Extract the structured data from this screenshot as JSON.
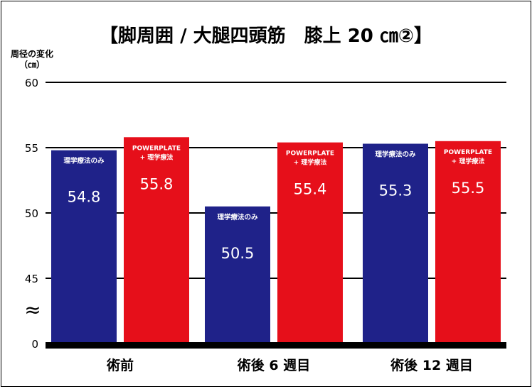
{
  "chart_data": {
    "type": "bar",
    "title": "【脚周囲 / 大腿四頭筋　膝上 20 ㎝②】",
    "ylabel": "周径の変化",
    "yunit": "（㎝）",
    "ylim": [
      0,
      60
    ],
    "yticks": [
      "0",
      "45",
      "50",
      "55",
      "60"
    ],
    "axis_break_symbol": "≈",
    "categories": [
      "術前",
      "術後 6 週目",
      "術後 12 週目"
    ],
    "series": [
      {
        "name": "理学療法のみ",
        "color": "#1f2289",
        "values": [
          54.8,
          50.5,
          55.3
        ]
      },
      {
        "name": "POWERPLATE\n+ 理学療法",
        "color": "#e60f1a",
        "values": [
          55.8,
          55.4,
          55.5
        ]
      }
    ],
    "value_labels": [
      [
        "54.8",
        "50.5",
        "55.3"
      ],
      [
        "55.8",
        "55.4",
        "55.5"
      ]
    ],
    "grid": true,
    "legend": "none"
  }
}
